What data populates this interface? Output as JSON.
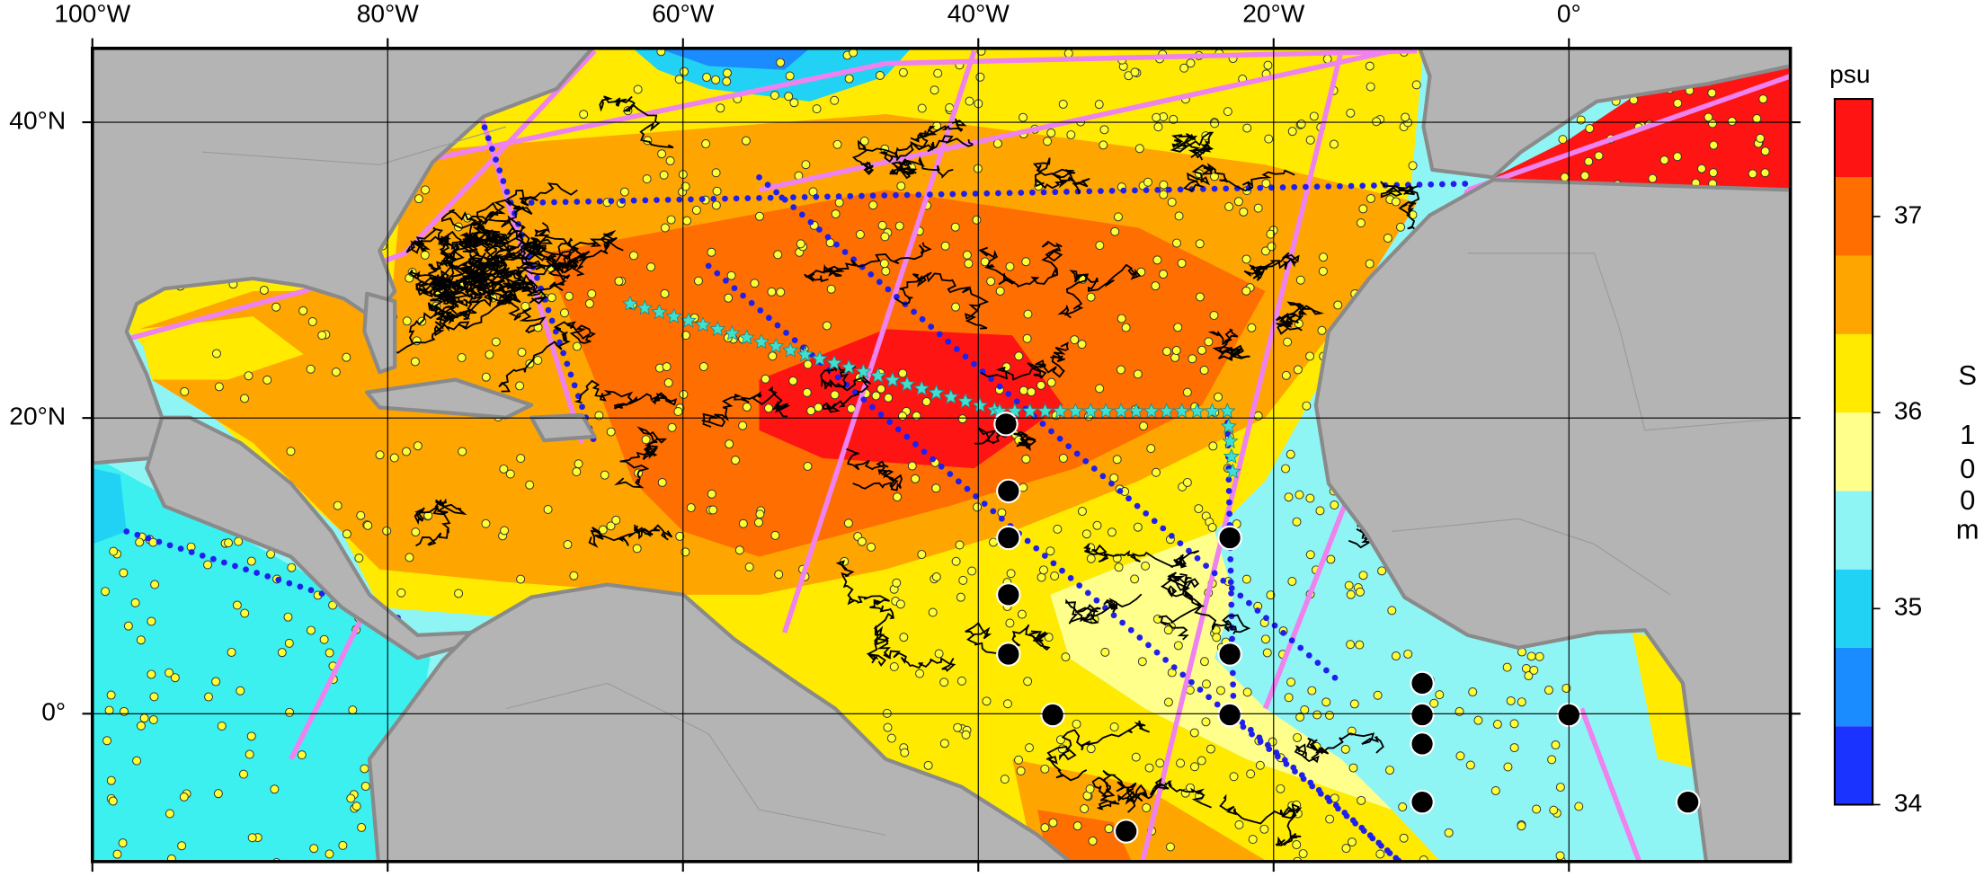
{
  "map": {
    "lon_range": [
      -100,
      15
    ],
    "lat_range": [
      -10,
      45
    ],
    "lon_ticks": [
      {
        "value": -100,
        "label": "100°W"
      },
      {
        "value": -80,
        "label": "80°W"
      },
      {
        "value": -60,
        "label": "60°W"
      },
      {
        "value": -40,
        "label": "40°W"
      },
      {
        "value": -20,
        "label": "20°W"
      },
      {
        "value": 0,
        "label": "0°"
      }
    ],
    "lat_ticks": [
      {
        "value": 0,
        "label": "0°"
      },
      {
        "value": 20,
        "label": "20°N"
      },
      {
        "value": 40,
        "label": "40°N"
      }
    ]
  },
  "colorbar": {
    "unit": "psu",
    "title_chars": [
      "S",
      "1",
      "0",
      "0",
      "m"
    ],
    "range": [
      34,
      37.6
    ],
    "ticks": [
      34,
      35,
      36,
      37
    ],
    "bands": [
      {
        "from": 34.0,
        "to": 34.4,
        "color": "#1a33ff"
      },
      {
        "from": 34.4,
        "to": 34.8,
        "color": "#1a8cff"
      },
      {
        "from": 34.8,
        "to": 35.2,
        "color": "#22d2f5"
      },
      {
        "from": 35.2,
        "to": 35.6,
        "color": "#8ff4f4"
      },
      {
        "from": 35.6,
        "to": 36.0,
        "color": "#ffff8c"
      },
      {
        "from": 36.0,
        "to": 36.4,
        "color": "#ffea00"
      },
      {
        "from": 36.4,
        "to": 36.8,
        "color": "#ffa500"
      },
      {
        "from": 36.8,
        "to": 37.2,
        "color": "#ff6e00"
      },
      {
        "from": 37.2,
        "to": 37.6,
        "color": "#ff1414"
      }
    ]
  }
}
